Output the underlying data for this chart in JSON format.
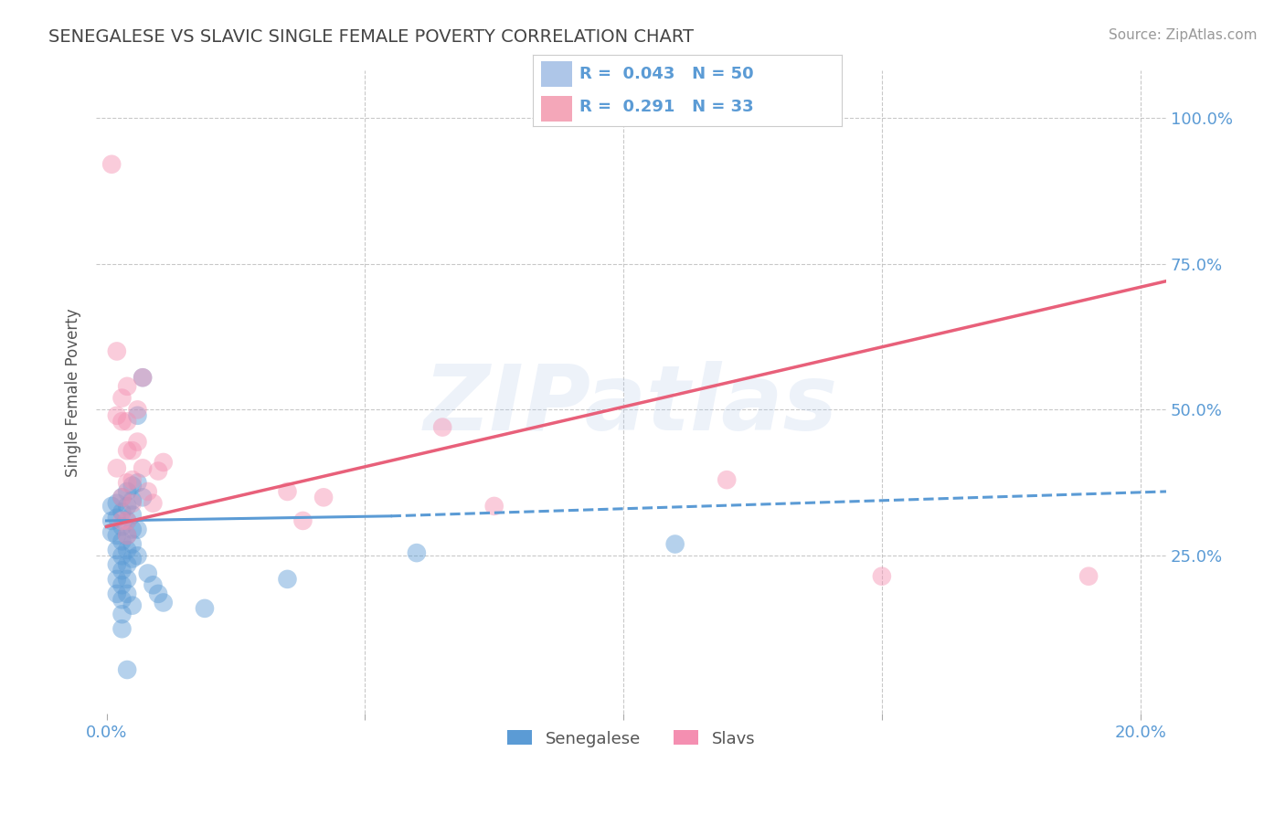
{
  "title": "SENEGALESE VS SLAVIC SINGLE FEMALE POVERTY CORRELATION CHART",
  "source": "Source: ZipAtlas.com",
  "ylabel_label": "Single Female Poverty",
  "x_ticks": [
    0.0,
    0.05,
    0.1,
    0.15,
    0.2
  ],
  "x_tick_labels": [
    "0.0%",
    "",
    "",
    "",
    "20.0%"
  ],
  "y_ticks": [
    0.0,
    0.25,
    0.5,
    0.75,
    1.0
  ],
  "y_tick_labels_right": [
    "",
    "25.0%",
    "50.0%",
    "75.0%",
    "100.0%"
  ],
  "xlim": [
    -0.002,
    0.205
  ],
  "ylim": [
    -0.02,
    1.08
  ],
  "watermark": "ZIPatlas",
  "background_color": "#ffffff",
  "grid_color": "#cccccc",
  "grid_color_dash": "#bbbbbb",
  "title_color": "#444444",
  "blue_color": "#5b9bd5",
  "pink_color": "#f48fb1",
  "tick_label_color": "#5b9bd5",
  "senegalese_dots": [
    [
      0.001,
      0.335
    ],
    [
      0.001,
      0.31
    ],
    [
      0.001,
      0.29
    ],
    [
      0.002,
      0.34
    ],
    [
      0.002,
      0.315
    ],
    [
      0.002,
      0.285
    ],
    [
      0.002,
      0.26
    ],
    [
      0.002,
      0.235
    ],
    [
      0.002,
      0.21
    ],
    [
      0.002,
      0.185
    ],
    [
      0.003,
      0.35
    ],
    [
      0.003,
      0.325
    ],
    [
      0.003,
      0.3
    ],
    [
      0.003,
      0.275
    ],
    [
      0.003,
      0.25
    ],
    [
      0.003,
      0.225
    ],
    [
      0.003,
      0.2
    ],
    [
      0.003,
      0.175
    ],
    [
      0.003,
      0.15
    ],
    [
      0.003,
      0.125
    ],
    [
      0.004,
      0.36
    ],
    [
      0.004,
      0.335
    ],
    [
      0.004,
      0.31
    ],
    [
      0.004,
      0.285
    ],
    [
      0.004,
      0.26
    ],
    [
      0.004,
      0.235
    ],
    [
      0.004,
      0.21
    ],
    [
      0.004,
      0.185
    ],
    [
      0.004,
      0.055
    ],
    [
      0.005,
      0.37
    ],
    [
      0.005,
      0.345
    ],
    [
      0.005,
      0.32
    ],
    [
      0.005,
      0.295
    ],
    [
      0.005,
      0.27
    ],
    [
      0.005,
      0.245
    ],
    [
      0.005,
      0.165
    ],
    [
      0.006,
      0.49
    ],
    [
      0.006,
      0.375
    ],
    [
      0.006,
      0.295
    ],
    [
      0.006,
      0.25
    ],
    [
      0.007,
      0.555
    ],
    [
      0.007,
      0.35
    ],
    [
      0.008,
      0.22
    ],
    [
      0.009,
      0.2
    ],
    [
      0.01,
      0.185
    ],
    [
      0.011,
      0.17
    ],
    [
      0.019,
      0.16
    ],
    [
      0.035,
      0.21
    ],
    [
      0.06,
      0.255
    ],
    [
      0.11,
      0.27
    ]
  ],
  "slavic_dots": [
    [
      0.001,
      0.92
    ],
    [
      0.002,
      0.6
    ],
    [
      0.002,
      0.49
    ],
    [
      0.002,
      0.4
    ],
    [
      0.003,
      0.52
    ],
    [
      0.003,
      0.48
    ],
    [
      0.003,
      0.35
    ],
    [
      0.003,
      0.31
    ],
    [
      0.004,
      0.54
    ],
    [
      0.004,
      0.48
    ],
    [
      0.004,
      0.43
    ],
    [
      0.004,
      0.375
    ],
    [
      0.004,
      0.31
    ],
    [
      0.004,
      0.285
    ],
    [
      0.005,
      0.43
    ],
    [
      0.005,
      0.38
    ],
    [
      0.005,
      0.34
    ],
    [
      0.006,
      0.5
    ],
    [
      0.006,
      0.445
    ],
    [
      0.007,
      0.555
    ],
    [
      0.007,
      0.4
    ],
    [
      0.008,
      0.36
    ],
    [
      0.009,
      0.34
    ],
    [
      0.01,
      0.395
    ],
    [
      0.011,
      0.41
    ],
    [
      0.035,
      0.36
    ],
    [
      0.038,
      0.31
    ],
    [
      0.042,
      0.35
    ],
    [
      0.065,
      0.47
    ],
    [
      0.075,
      0.335
    ],
    [
      0.12,
      0.38
    ],
    [
      0.15,
      0.215
    ],
    [
      0.19,
      0.215
    ]
  ],
  "blue_line_solid": {
    "x0": 0.0,
    "y0": 0.31,
    "x1": 0.055,
    "y1": 0.318
  },
  "blue_line_dash": {
    "x0": 0.055,
    "y0": 0.318,
    "x1": 0.205,
    "y1": 0.36
  },
  "pink_line": {
    "x0": 0.0,
    "y0": 0.3,
    "x1": 0.205,
    "y1": 0.72
  }
}
